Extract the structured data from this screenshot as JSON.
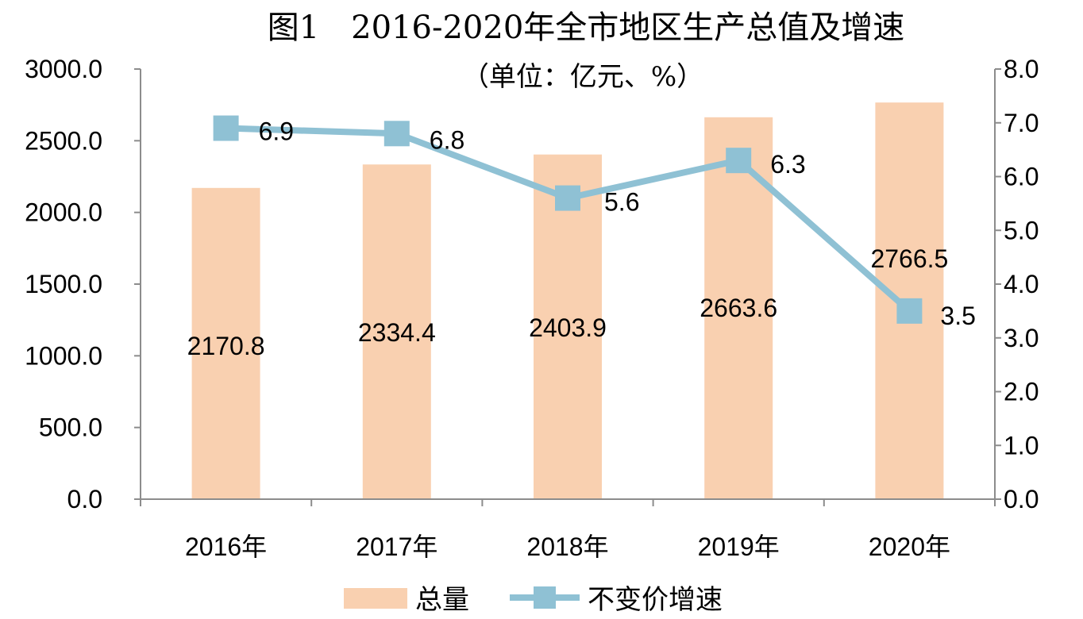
{
  "chart_data": {
    "type": "bar",
    "title": "图1　2016-2020年全市地区生产总值及增速",
    "subtitle": "（单位：亿元、%）",
    "categories": [
      "2016年",
      "2017年",
      "2018年",
      "2019年",
      "2020年"
    ],
    "series": [
      {
        "name": "总量",
        "type": "bar",
        "axis": "left",
        "color": "#F9D0B0",
        "values": [
          2170.8,
          2334.4,
          2403.9,
          2663.6,
          2766.5
        ],
        "labels": [
          "2170.8",
          "2334.4",
          "2403.9",
          "2663.6",
          "2766.5"
        ]
      },
      {
        "name": "不变价增速",
        "type": "line",
        "axis": "right",
        "color": "#8FC1D4",
        "marker": "square",
        "values": [
          6.9,
          6.8,
          5.6,
          6.3,
          3.5
        ],
        "labels": [
          "6.9",
          "6.8",
          "5.6",
          "6.3",
          "3.5"
        ]
      }
    ],
    "y_left": {
      "ylim": [
        0,
        3000
      ],
      "ticks": [
        "0.0",
        "500.0",
        "1000.0",
        "1500.0",
        "2000.0",
        "2500.0",
        "3000.0"
      ]
    },
    "y_right": {
      "ylim": [
        0,
        8
      ],
      "ticks": [
        "0.0",
        "1.0",
        "2.0",
        "3.0",
        "4.0",
        "5.0",
        "6.0",
        "7.0",
        "8.0"
      ]
    },
    "grid": false,
    "legend": "bottom"
  }
}
